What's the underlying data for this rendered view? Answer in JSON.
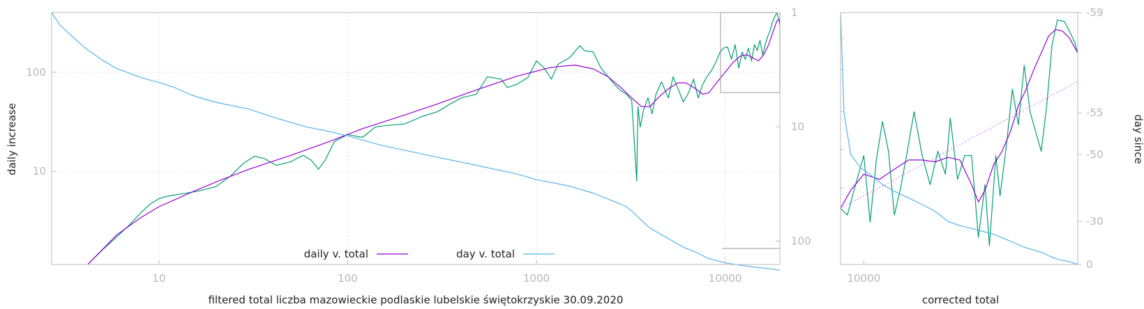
{
  "chart_data": [
    {
      "type": "line",
      "id": "main",
      "xlabel": "filtered total liczba mazowieckie podlaskie lubelskie świętokrzyskie 30.09.2020",
      "ylabel": "daily increase",
      "y2label": "",
      "xscale": "log",
      "yscale": "log",
      "y2scale": "log",
      "xlim": [
        2.7,
        19500
      ],
      "ylim": [
        1.15,
        400
      ],
      "y2lim": [
        1,
        160
      ],
      "y2_reversed": true,
      "grid": true,
      "legend_position": "bottom-center",
      "x_ticks": [
        "10",
        "100",
        "1000",
        "10000"
      ],
      "y_ticks": [
        "10",
        "100"
      ],
      "y2_ticks": [
        "1",
        "10",
        "100"
      ],
      "series": [
        {
          "name": "",
          "color": "#009e73",
          "axis": "y",
          "x": [
            4.2,
            5,
            6,
            7,
            8,
            9,
            10,
            11,
            13,
            16,
            20,
            24,
            28,
            32,
            36,
            42,
            50,
            58,
            64,
            70,
            76,
            85,
            100,
            120,
            140,
            160,
            200,
            250,
            300,
            350,
            400,
            480,
            550,
            650,
            700,
            780,
            900,
            1000,
            1100,
            1200,
            1300,
            1500,
            1700,
            1800,
            2000,
            2200,
            2400,
            2600,
            2800,
            3000,
            3200,
            3400,
            3450,
            3550,
            3700,
            3900,
            4100,
            4300,
            4600,
            5000,
            5300,
            5600,
            6000,
            6400,
            6800,
            7200,
            7600,
            8000,
            8500,
            9000,
            9400,
            9800,
            10300,
            10800,
            11300,
            11800,
            12300,
            12800,
            13300,
            13800,
            14300,
            14800,
            15300,
            15800,
            16300,
            16800,
            17300,
            17800,
            18300,
            18800,
            19300,
            19500
          ],
          "y": [
            1.15,
            1.6,
            2.2,
            2.9,
            3.8,
            4.7,
            5.3,
            5.6,
            5.9,
            6.3,
            7.0,
            9.0,
            12,
            14.2,
            13.5,
            11.5,
            12.5,
            14.5,
            13,
            10.5,
            13,
            20,
            23.5,
            22,
            28,
            29,
            30,
            36,
            40,
            48,
            55,
            60,
            90,
            85,
            70,
            75,
            88,
            130,
            110,
            85,
            120,
            140,
            185,
            165,
            160,
            110,
            90,
            75,
            65,
            60,
            52,
            8,
            45,
            28,
            42,
            55,
            38,
            60,
            80,
            55,
            90,
            70,
            50,
            62,
            85,
            55,
            75,
            90,
            105,
            130,
            160,
            175,
            180,
            135,
            190,
            110,
            160,
            135,
            175,
            130,
            190,
            165,
            210,
            150,
            190,
            230,
            260,
            320,
            360,
            400,
            330,
            300
          ]
        },
        {
          "name": "daily v. total",
          "color": "#9400d3",
          "axis": "y",
          "x": [
            4.2,
            6,
            8,
            10,
            15,
            20,
            30,
            50,
            80,
            120,
            200,
            300,
            500,
            800,
            1200,
            1600,
            2000,
            2400,
            2800,
            3200,
            3600,
            4000,
            4400,
            5000,
            5600,
            6200,
            7000,
            7600,
            8200,
            9000,
            10000,
            11000,
            12000,
            13000,
            14000,
            15000,
            16000,
            17000,
            18000,
            18800,
            19300,
            19500
          ],
          "y": [
            1.15,
            2.3,
            3.4,
            4.4,
            6.2,
            7.8,
            10.5,
            14.5,
            20,
            27,
            37,
            48,
            68,
            92,
            112,
            118,
            108,
            90,
            70,
            55,
            45,
            45,
            55,
            68,
            78,
            78,
            68,
            60,
            62,
            78,
            100,
            125,
            145,
            150,
            140,
            130,
            150,
            190,
            260,
            330,
            340,
            310
          ]
        },
        {
          "name": "day v. total",
          "color": "#56b4e9",
          "axis": "y2",
          "x": [
            2.7,
            3,
            4,
            5,
            6,
            7,
            8,
            10,
            12,
            15,
            20,
            30,
            40,
            60,
            80,
            100,
            150,
            200,
            300,
            500,
            800,
            1000,
            1500,
            2000,
            2500,
            3000,
            3300,
            3500,
            4000,
            5000,
            6000,
            7000,
            8000,
            9000,
            10000,
            12000,
            14000,
            16000,
            18000,
            19500
          ],
          "y": [
            1,
            1.3,
            2,
            2.6,
            3.1,
            3.4,
            3.7,
            4.1,
            4.5,
            5.3,
            6.1,
            7.0,
            8.2,
            10,
            11,
            12,
            14.5,
            16,
            18.5,
            22,
            26,
            29,
            33,
            38,
            44,
            50,
            57,
            63,
            77,
            95,
            113,
            125,
            140,
            148,
            155,
            162,
            168,
            172,
            176,
            180
          ]
        }
      ]
    },
    {
      "type": "line",
      "id": "zoom",
      "xlabel": "corrected total",
      "ylabel": "",
      "y2label": "day since",
      "xlim": [
        9300,
        19500
      ],
      "ylim": [
        65,
        450
      ],
      "y2lim": [
        0,
        -59
      ],
      "x_ticks": [
        "10000"
      ],
      "y2_ticks": [
        "-59",
        "-55",
        "-50",
        "-30",
        "0"
      ],
      "y2_tick_values": [
        -59,
        -55,
        -50,
        -30,
        0
      ],
      "series": [
        {
          "name": "",
          "color": "#009e73",
          "axis": "y",
          "x": [
            9300,
            9500,
            9700,
            10000,
            10200,
            10400,
            10600,
            10800,
            11000,
            11200,
            11400,
            11700,
            12000,
            12300,
            12600,
            12900,
            13100,
            13400,
            13700,
            14000,
            14300,
            14600,
            14800,
            15100,
            15300,
            15600,
            15900,
            16200,
            16500,
            16800,
            17100,
            17400,
            17700,
            18000,
            18300,
            18700,
            19000,
            19300,
            19500
          ],
          "y": [
            100,
            95,
            115,
            150,
            90,
            145,
            195,
            155,
            95,
            115,
            145,
            210,
            150,
            120,
            155,
            130,
            200,
            125,
            150,
            150,
            80,
            120,
            75,
            150,
            110,
            160,
            250,
            190,
            300,
            210,
            180,
            155,
            220,
            350,
            425,
            420,
            390,
            360,
            330
          ]
        },
        {
          "name": "",
          "color": "#9400d3",
          "axis": "y",
          "x": [
            9300,
            9600,
            10000,
            10500,
            11000,
            11500,
            12000,
            12500,
            13000,
            13500,
            14000,
            14300,
            14600,
            15000,
            15400,
            15800,
            16200,
            16600,
            17000,
            17400,
            17800,
            18200,
            18600,
            19000,
            19300,
            19500
          ],
          "y": [
            100,
            115,
            130,
            125,
            135,
            145,
            145,
            143,
            148,
            145,
            120,
            105,
            115,
            140,
            155,
            180,
            220,
            250,
            290,
            330,
            375,
            395,
            390,
            370,
            345,
            330
          ]
        },
        {
          "name": "",
          "color": "#cc66ff",
          "dashed": true,
          "axis": "y",
          "x": [
            9300,
            19500
          ],
          "y": [
            100,
            265
          ]
        },
        {
          "name": "",
          "color": "#56b4e9",
          "axis": "y2",
          "x": [
            9300,
            9400,
            9600,
            9900,
            10200,
            10600,
            11000,
            11500,
            12000,
            12500,
            13000,
            13500,
            14000,
            14500,
            15000,
            15500,
            16000,
            16500,
            17000,
            17500,
            18000,
            18500,
            19000,
            19500
          ],
          "y": [
            -59,
            -55,
            -50,
            -46,
            -44,
            -41,
            -39,
            -37,
            -35,
            -33,
            -30,
            -27,
            -25,
            -23,
            -21,
            -18,
            -15,
            -12,
            -10,
            -8,
            -5,
            -3,
            -2,
            0
          ]
        }
      ]
    }
  ]
}
